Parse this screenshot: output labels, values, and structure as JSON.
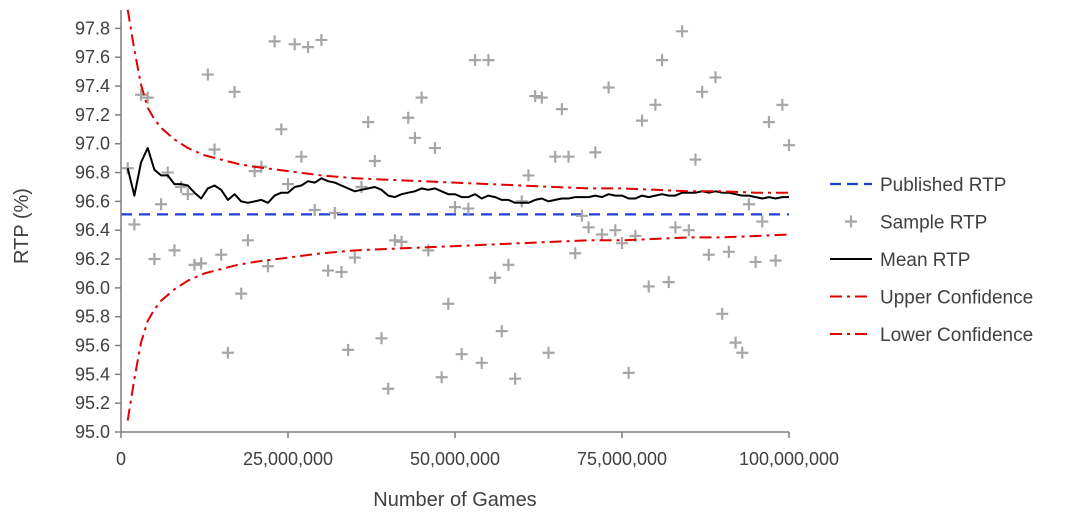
{
  "chart_data": {
    "type": "scatter",
    "title": "",
    "xlabel": "Number of Games",
    "ylabel": "RTP (%)",
    "xlim": [
      0,
      100000000
    ],
    "ylim": [
      95.0,
      97.9
    ],
    "x_ticks": [
      0,
      25000000,
      50000000,
      75000000,
      100000000
    ],
    "x_tick_labels": [
      "0",
      "25,000,000",
      "50,000,000",
      "75,000,000",
      "100,000,000"
    ],
    "y_ticks": [
      95.0,
      95.2,
      95.4,
      95.6,
      95.8,
      96.0,
      96.2,
      96.4,
      96.6,
      96.8,
      97.0,
      97.2,
      97.4,
      97.6,
      97.8
    ],
    "y_tick_labels": [
      "95.0",
      "95.2",
      "95.4",
      "95.6",
      "95.8",
      "96.0",
      "96.2",
      "96.4",
      "96.6",
      "96.8",
      "97.0",
      "97.2",
      "97.4",
      "97.6",
      "97.8"
    ],
    "grid": false,
    "legend_position": "right",
    "colors": {
      "published": "#1f3fd6",
      "sample": "#a6a6a6",
      "mean": "#000000",
      "confidence": "#e00000",
      "axis": "#7f7f7f",
      "text": "#404040"
    },
    "series": [
      {
        "name": "Published RTP",
        "style": "dashed",
        "constant_y": 96.51,
        "x_range": [
          0,
          100000000
        ]
      },
      {
        "name": "Sample RTP",
        "style": "markers",
        "x": [
          1000000,
          2000000,
          3000000,
          4000000,
          5000000,
          6000000,
          7000000,
          8000000,
          9000000,
          10000000,
          11000000,
          12000000,
          13000000,
          14000000,
          15000000,
          16000000,
          17000000,
          18000000,
          19000000,
          20000000,
          21000000,
          22000000,
          23000000,
          24000000,
          25000000,
          26000000,
          27000000,
          28000000,
          29000000,
          30000000,
          31000000,
          32000000,
          33000000,
          34000000,
          35000000,
          36000000,
          37000000,
          38000000,
          39000000,
          40000000,
          41000000,
          42000000,
          43000000,
          44000000,
          45000000,
          46000000,
          47000000,
          48000000,
          49000000,
          50000000,
          51000000,
          52000000,
          53000000,
          54000000,
          55000000,
          56000000,
          57000000,
          58000000,
          59000000,
          60000000,
          61000000,
          62000000,
          63000000,
          64000000,
          65000000,
          66000000,
          67000000,
          68000000,
          69000000,
          70000000,
          71000000,
          72000000,
          73000000,
          74000000,
          75000000,
          76000000,
          77000000,
          78000000,
          79000000,
          80000000,
          81000000,
          82000000,
          83000000,
          84000000,
          85000000,
          86000000,
          87000000,
          88000000,
          89000000,
          90000000,
          91000000,
          92000000,
          93000000,
          94000000,
          95000000,
          96000000,
          97000000,
          98000000,
          99000000,
          100000000
        ],
        "y": [
          96.83,
          96.44,
          97.34,
          97.32,
          96.2,
          96.58,
          96.8,
          96.26,
          96.7,
          96.65,
          96.16,
          96.17,
          97.48,
          96.96,
          96.23,
          95.55,
          97.36,
          95.96,
          96.33,
          96.81,
          96.84,
          96.15,
          97.71,
          97.1,
          96.72,
          97.69,
          96.91,
          97.67,
          96.54,
          97.72,
          96.12,
          96.52,
          96.11,
          95.57,
          96.21,
          96.7,
          97.15,
          96.88,
          95.65,
          95.3,
          96.33,
          96.32,
          97.18,
          97.04,
          97.32,
          96.26,
          96.97,
          95.38,
          95.89,
          96.56,
          95.54,
          96.55,
          97.58,
          95.48,
          97.58,
          96.07,
          95.7,
          96.16,
          95.37,
          96.6,
          96.78,
          97.33,
          97.32,
          95.55,
          96.91,
          97.24,
          96.91,
          96.24,
          96.5,
          96.42,
          96.94,
          96.37,
          97.39,
          96.4,
          96.31,
          95.41,
          96.36,
          97.16,
          96.01,
          97.27,
          97.58,
          96.04,
          96.42,
          97.78,
          96.4,
          96.89,
          97.36,
          96.23,
          97.46,
          95.82,
          96.25,
          95.62,
          95.55,
          96.58,
          96.18,
          96.46,
          97.15,
          96.19,
          97.27,
          96.99
        ]
      },
      {
        "name": "Mean RTP",
        "style": "solid",
        "x": [
          1000000,
          2000000,
          3000000,
          4000000,
          5000000,
          6000000,
          7000000,
          8000000,
          9000000,
          10000000,
          11000000,
          12000000,
          13000000,
          14000000,
          15000000,
          16000000,
          17000000,
          18000000,
          19000000,
          20000000,
          21000000,
          22000000,
          23000000,
          24000000,
          25000000,
          26000000,
          27000000,
          28000000,
          29000000,
          30000000,
          31000000,
          32000000,
          33000000,
          34000000,
          35000000,
          36000000,
          37000000,
          38000000,
          39000000,
          40000000,
          41000000,
          42000000,
          43000000,
          44000000,
          45000000,
          46000000,
          47000000,
          48000000,
          49000000,
          50000000,
          51000000,
          52000000,
          53000000,
          54000000,
          55000000,
          56000000,
          57000000,
          58000000,
          59000000,
          60000000,
          61000000,
          62000000,
          63000000,
          64000000,
          65000000,
          66000000,
          67000000,
          68000000,
          69000000,
          70000000,
          71000000,
          72000000,
          73000000,
          74000000,
          75000000,
          76000000,
          77000000,
          78000000,
          79000000,
          80000000,
          81000000,
          82000000,
          83000000,
          84000000,
          85000000,
          86000000,
          87000000,
          88000000,
          89000000,
          90000000,
          91000000,
          92000000,
          93000000,
          94000000,
          95000000,
          96000000,
          97000000,
          98000000,
          99000000,
          100000000
        ],
        "y": [
          96.83,
          96.64,
          96.87,
          96.97,
          96.82,
          96.78,
          96.78,
          96.72,
          96.72,
          96.71,
          96.66,
          96.62,
          96.69,
          96.71,
          96.68,
          96.61,
          96.65,
          96.6,
          96.59,
          96.6,
          96.61,
          96.59,
          96.64,
          96.66,
          96.66,
          96.7,
          96.71,
          96.74,
          96.73,
          96.76,
          96.74,
          96.73,
          96.71,
          96.69,
          96.67,
          96.68,
          96.69,
          96.7,
          96.68,
          96.64,
          96.63,
          96.65,
          96.66,
          96.67,
          96.69,
          96.68,
          96.69,
          96.67,
          96.65,
          96.65,
          96.63,
          96.63,
          96.65,
          96.62,
          96.64,
          96.63,
          96.61,
          96.61,
          96.59,
          96.59,
          96.59,
          96.61,
          96.62,
          96.6,
          96.61,
          96.62,
          96.62,
          96.63,
          96.63,
          96.63,
          96.64,
          96.63,
          96.65,
          96.64,
          96.64,
          96.62,
          96.62,
          96.64,
          96.63,
          96.64,
          96.65,
          96.64,
          96.64,
          96.66,
          96.66,
          96.66,
          96.67,
          96.66,
          96.67,
          96.66,
          96.66,
          96.65,
          96.64,
          96.64,
          96.63,
          96.62,
          96.63,
          96.62,
          96.63,
          96.63
        ]
      },
      {
        "name": "Upper Confidence",
        "style": "dashdot",
        "x": [
          1000000,
          2000000,
          3000000,
          4000000,
          5000000,
          6000000,
          8000000,
          10000000,
          12500000,
          15000000,
          17500000,
          20000000,
          25000000,
          30000000,
          35000000,
          40000000,
          45000000,
          50000000,
          55000000,
          60000000,
          65000000,
          70000000,
          75000000,
          80000000,
          85000000,
          90000000,
          95000000,
          100000000
        ],
        "y": [
          97.93,
          97.65,
          97.41,
          97.25,
          97.17,
          97.11,
          97.03,
          96.97,
          96.92,
          96.89,
          96.86,
          96.84,
          96.81,
          96.78,
          96.76,
          96.75,
          96.74,
          96.73,
          96.72,
          96.71,
          96.7,
          96.69,
          96.69,
          96.68,
          96.67,
          96.67,
          96.66,
          96.66
        ]
      },
      {
        "name": "Lower Confidence",
        "style": "dashdot",
        "x": [
          1000000,
          2000000,
          3000000,
          4000000,
          5000000,
          6000000,
          8000000,
          10000000,
          12500000,
          15000000,
          17500000,
          20000000,
          25000000,
          30000000,
          35000000,
          40000000,
          45000000,
          50000000,
          55000000,
          60000000,
          65000000,
          70000000,
          75000000,
          80000000,
          85000000,
          90000000,
          95000000,
          100000000
        ],
        "y": [
          95.08,
          95.37,
          95.62,
          95.77,
          95.85,
          95.91,
          95.99,
          96.05,
          96.1,
          96.13,
          96.16,
          96.18,
          96.21,
          96.24,
          96.26,
          96.27,
          96.28,
          96.29,
          96.3,
          96.31,
          96.32,
          96.33,
          96.33,
          96.34,
          96.35,
          96.35,
          96.36,
          96.37
        ]
      }
    ]
  }
}
